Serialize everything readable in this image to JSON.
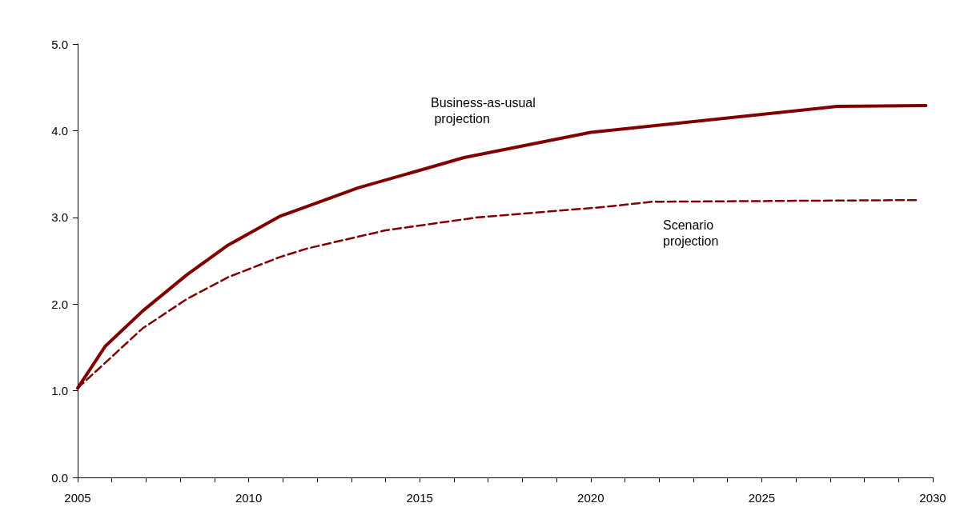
{
  "chart_data": {
    "type": "line",
    "xlim": [
      2005,
      2030
    ],
    "ylim": [
      0,
      5
    ],
    "xticks": [
      2005,
      {
        "value": 2006,
        "label": null
      },
      {
        "value": 2007,
        "label": null
      },
      {
        "value": 2008,
        "label": null
      },
      {
        "value": 2009,
        "label": null
      },
      2010,
      {
        "value": 2011,
        "label": null
      },
      {
        "value": 2012,
        "label": null
      },
      {
        "value": 2013,
        "label": null
      },
      {
        "value": 2014,
        "label": null
      },
      2015,
      {
        "value": 2016,
        "label": null
      },
      {
        "value": 2017,
        "label": null
      },
      {
        "value": 2018,
        "label": null
      },
      {
        "value": 2019,
        "label": null
      },
      2020,
      {
        "value": 2021,
        "label": null
      },
      {
        "value": 2022,
        "label": null
      },
      {
        "value": 2023,
        "label": null
      },
      {
        "value": 2024,
        "label": null
      },
      2025,
      {
        "value": 2026,
        "label": null
      },
      {
        "value": 2027,
        "label": null
      },
      {
        "value": 2028,
        "label": null
      },
      {
        "value": 2029,
        "label": null
      },
      2030
    ],
    "yticks": [
      {
        "value": 0,
        "label": "0.0"
      },
      {
        "value": 1,
        "label": "1.0"
      },
      {
        "value": 2,
        "label": "2.0"
      },
      {
        "value": 3,
        "label": "3.0"
      },
      {
        "value": 4,
        "label": "4.0"
      },
      {
        "value": 5,
        "label": "5.0"
      }
    ],
    "grid": false,
    "marker": "none",
    "series": [
      {
        "color": "#800000",
        "line_style": "solid",
        "x": [
          2005,
          2005.8,
          2006.9,
          2008.2,
          2009.4,
          2010.9,
          2013.2,
          2016.3,
          2020,
          2027.2,
          2029.8
        ],
        "values": [
          1.03,
          1.51,
          1.92,
          2.34,
          2.68,
          3.01,
          3.34,
          3.69,
          3.98,
          4.28,
          4.29
        ]
      },
      {
        "color": "#800000",
        "line_style": "dashed",
        "x": [
          2005,
          2005.8,
          2006.9,
          2008.2,
          2009.4,
          2010.9,
          2011.7,
          2014,
          2016.7,
          2020.4,
          2021.8,
          2029.6
        ],
        "values": [
          1.03,
          1.32,
          1.72,
          2.06,
          2.31,
          2.54,
          2.64,
          2.85,
          3.0,
          3.12,
          3.18,
          3.2
        ]
      }
    ],
    "annotations": [
      "Business-as-usual\n projection",
      "Scenario\nprojection"
    ]
  }
}
